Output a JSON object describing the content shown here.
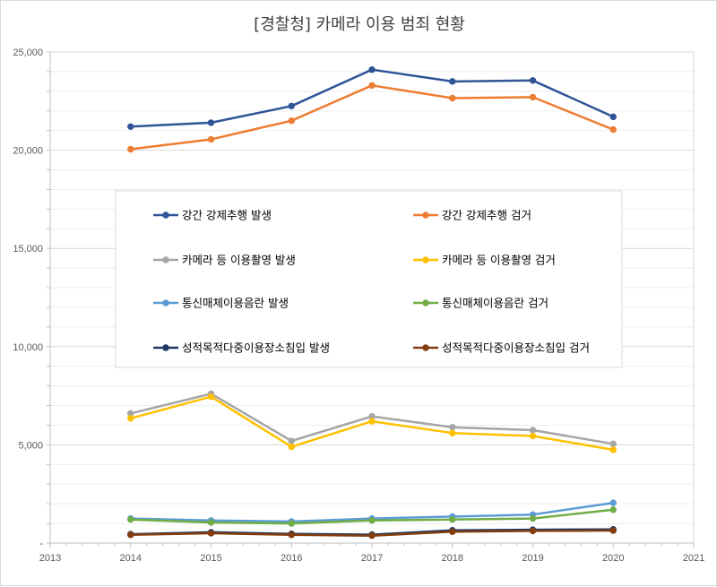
{
  "chart_data": {
    "type": "line",
    "title": "[경찰청] 카메라 이용 범죄 현황",
    "xlabel": "",
    "ylabel": "",
    "xlim": [
      2013,
      2021
    ],
    "ylim": [
      0,
      25000
    ],
    "x_ticks": [
      "2013",
      "2014",
      "2015",
      "2016",
      "2017",
      "2018",
      "2019",
      "2020",
      "2021"
    ],
    "y_ticks": [
      "-",
      "5,000",
      "10,000",
      "15,000",
      "20,000",
      "25,000"
    ],
    "y_tick_values": [
      0,
      5000,
      10000,
      15000,
      20000,
      25000
    ],
    "grid": true,
    "legend_position": "center",
    "x": [
      2014,
      2015,
      2016,
      2017,
      2018,
      2019,
      2020
    ],
    "series": [
      {
        "name": "강간 강제추행 발생",
        "color": "#2f5597",
        "values": [
          21200,
          21400,
          22250,
          24100,
          23500,
          23550,
          21700
        ]
      },
      {
        "name": "강간 강제추행 검거",
        "color": "#ed7d31",
        "values": [
          20050,
          20550,
          21500,
          23300,
          22650,
          22700,
          21050
        ]
      },
      {
        "name": "카메라 등 이용촬영 발생",
        "color": "#a5a5a5",
        "values": [
          6600,
          7600,
          5200,
          6450,
          5900,
          5750,
          5050
        ]
      },
      {
        "name": "카메라 등 이용촬영 검거",
        "color": "#ffc000",
        "values": [
          6350,
          7450,
          4900,
          6200,
          5600,
          5450,
          4750
        ]
      },
      {
        "name": "통신매체이용음란 발생",
        "color": "#5b9bd5",
        "values": [
          1250,
          1150,
          1100,
          1250,
          1350,
          1450,
          2050
        ]
      },
      {
        "name": "통신매체이용음란 검거",
        "color": "#70ad47",
        "values": [
          1200,
          1050,
          1000,
          1150,
          1200,
          1250,
          1700
        ]
      },
      {
        "name": "성적목적다중이용장소침입 발생",
        "color": "#1f3864",
        "values": [
          450,
          550,
          470,
          430,
          650,
          680,
          700
        ]
      },
      {
        "name": "성적목적다중이용장소침입 검거",
        "color": "#843c0c",
        "values": [
          420,
          500,
          420,
          380,
          580,
          620,
          640
        ]
      }
    ]
  }
}
